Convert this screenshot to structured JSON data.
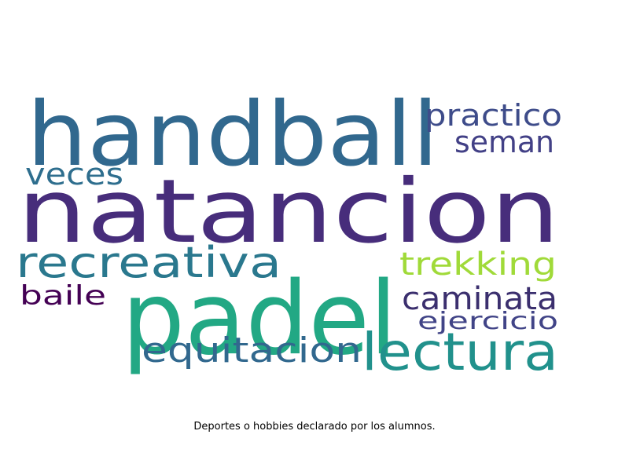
{
  "caption": "Deportes o hobbies declarado por los alumnos.",
  "words": [
    {
      "text": "handball",
      "color": "#31688e"
    },
    {
      "text": "practico",
      "color": "#3e4c8a"
    },
    {
      "text": "seman",
      "color": "#424086"
    },
    {
      "text": "veces",
      "color": "#2e6e8e"
    },
    {
      "text": "natancion",
      "color": "#472d7b"
    },
    {
      "text": "recreativa",
      "color": "#2a788e"
    },
    {
      "text": "trekking",
      "color": "#a0da39"
    },
    {
      "text": "padel",
      "color": "#22a884"
    },
    {
      "text": "baile",
      "color": "#440154"
    },
    {
      "text": "caminata",
      "color": "#3b2f6e"
    },
    {
      "text": "ejercicio",
      "color": "#414487"
    },
    {
      "text": "equitacion",
      "color": "#31688e"
    },
    {
      "text": "lectura",
      "color": "#21918c"
    }
  ]
}
